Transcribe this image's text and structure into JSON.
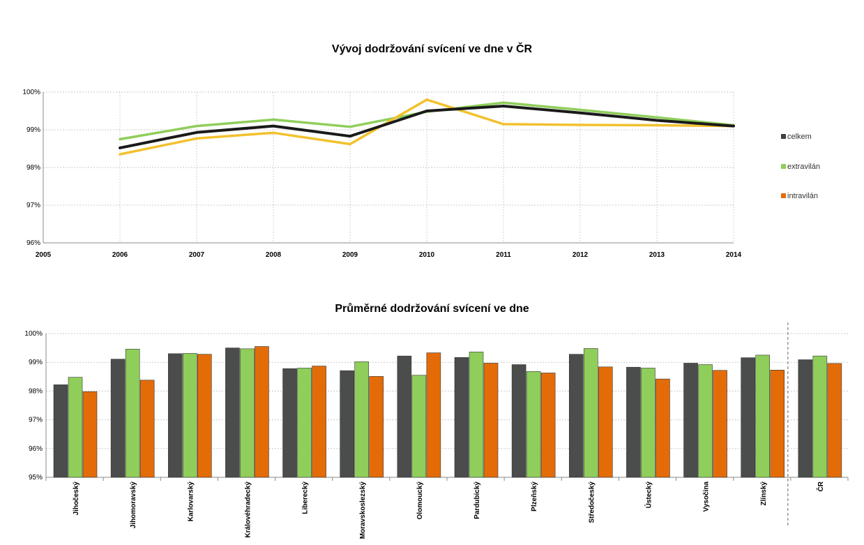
{
  "chart_data": [
    {
      "type": "line",
      "title": "Vývoj dodržování svícení ve dne v ČR",
      "x": [
        2006,
        2007,
        2008,
        2009,
        2010,
        2011,
        2012,
        2013,
        2014
      ],
      "xlim": [
        2005,
        2014
      ],
      "ylim": [
        0.96,
        1.0
      ],
      "y_ticks": [
        "96%",
        "97%",
        "98%",
        "99%",
        "100%"
      ],
      "x_ticks": [
        "2005",
        "2006",
        "2007",
        "2008",
        "2009",
        "2010",
        "2011",
        "2012",
        "2013",
        "2014"
      ],
      "grid": true,
      "legend_position": "right",
      "series": [
        {
          "name": "celkem",
          "color": "#1a1a1a",
          "legend_color": "#404040",
          "values": [
            0.9852,
            0.9893,
            0.991,
            0.9883,
            0.995,
            0.9963,
            0.9945,
            0.9925,
            0.991
          ]
        },
        {
          "name": "extravilán",
          "color": "#8fce5a",
          "legend_color": "#8fce5a",
          "values": [
            0.9875,
            0.991,
            0.9927,
            0.9908,
            0.9948,
            0.9972,
            0.9953,
            0.9933,
            0.9912
          ]
        },
        {
          "name": "intravilán",
          "color": "#f2c12e",
          "legend_color": "#e36c09",
          "values": [
            0.9835,
            0.9877,
            0.9892,
            0.9862,
            0.998,
            0.9915,
            0.9913,
            0.9912,
            0.991
          ]
        }
      ]
    },
    {
      "type": "bar",
      "title": "Průměrné dodržování svícení ve dne",
      "categories": [
        "Jihočeský",
        "Jihomoravský",
        "Karlovarský",
        "Královéhradecký",
        "Liberecký",
        "Moravskoslezský",
        "Olomoucký",
        "Pardubický",
        "Plzeňský",
        "Středočeský",
        "Ústecký",
        "Vysočina",
        "Zlínský",
        "ČR"
      ],
      "ylim": [
        0.95,
        1.0
      ],
      "y_ticks": [
        "95%",
        "96%",
        "97%",
        "98%",
        "99%",
        "100%"
      ],
      "grid": true,
      "series": [
        {
          "name": "celkem",
          "color": "#4a4d4c",
          "values": [
            0.9822,
            0.9911,
            0.993,
            0.995,
            0.9878,
            0.9871,
            0.9922,
            0.9917,
            0.9892,
            0.9928,
            0.9883,
            0.9897,
            0.9916,
            0.9909
          ]
        },
        {
          "name": "extravilán",
          "color": "#8fce5a",
          "values": [
            0.9848,
            0.9946,
            0.9931,
            0.9947,
            0.988,
            0.9902,
            0.9855,
            0.9936,
            0.9868,
            0.9948,
            0.988,
            0.9892,
            0.9925,
            0.9922
          ]
        },
        {
          "name": "intravilán",
          "color": "#e36c09",
          "values": [
            0.9798,
            0.9838,
            0.9928,
            0.9955,
            0.9887,
            0.9851,
            0.9933,
            0.9897,
            0.9863,
            0.9884,
            0.9842,
            0.9872,
            0.9873,
            0.9896
          ]
        }
      ]
    }
  ]
}
